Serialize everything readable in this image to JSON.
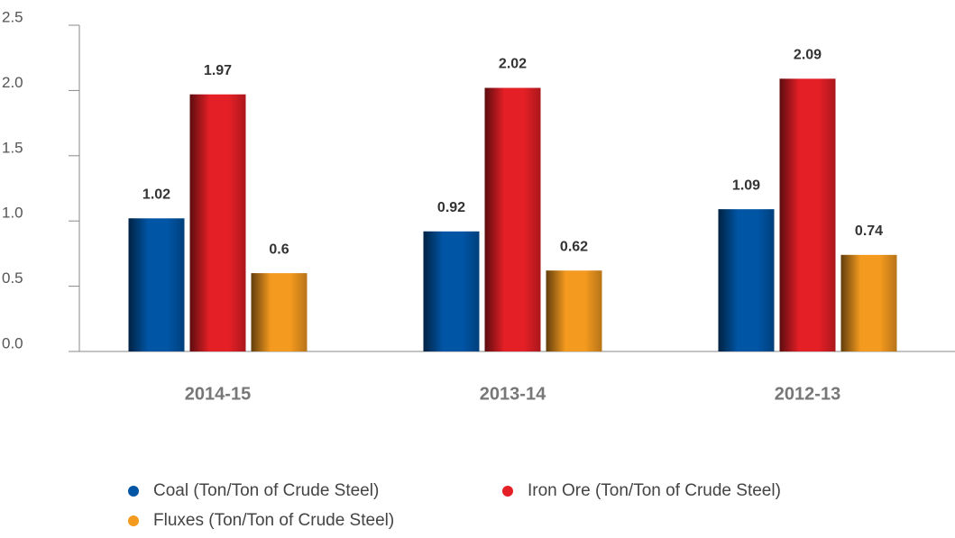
{
  "chart_data": {
    "type": "bar",
    "categories": [
      "2014-15",
      "2013-14",
      "2012-13"
    ],
    "series": [
      {
        "name": "Coal (Ton/Ton of Crude Steel)",
        "color": "#0055a5",
        "values": [
          1.02,
          0.92,
          1.09
        ]
      },
      {
        "name": "Iron Ore (Ton/Ton of Crude Steel)",
        "color": "#e41f26",
        "values": [
          1.97,
          2.02,
          2.09
        ]
      },
      {
        "name": "Fluxes (Ton/Ton of Crude Steel)",
        "color": "#f49a1f",
        "values": [
          0.6,
          0.62,
          0.74
        ]
      }
    ],
    "ylim": [
      0,
      2.5
    ],
    "yticks": [
      {
        "value": 0,
        "label": "0.0"
      },
      0.5,
      {
        "value": 1,
        "label": "1.0"
      },
      1.5,
      {
        "value": 2,
        "label": "2.0"
      },
      2.5
    ],
    "legend": "bottom"
  }
}
